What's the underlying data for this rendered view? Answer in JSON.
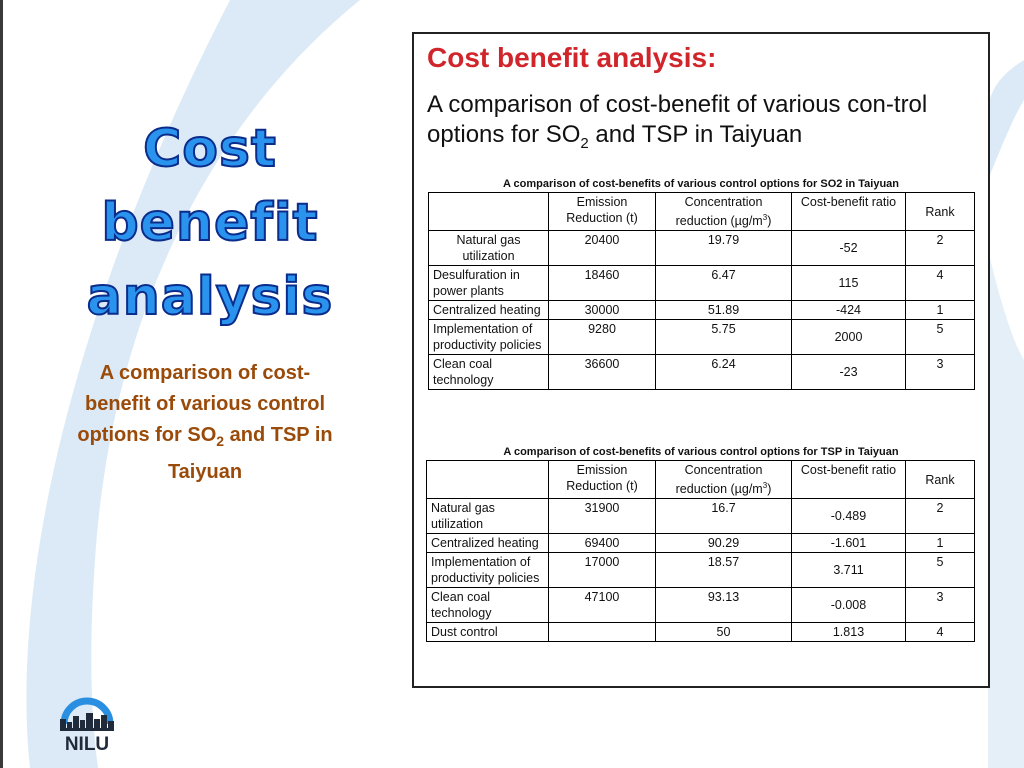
{
  "slide": {
    "title_lines": [
      "Cost",
      "benefit",
      "analysis"
    ],
    "subtitle": {
      "part1": "A comparison of cost-benefit of various control options for SO",
      "sub": "2",
      "part2": " and TSP in Taiyuan"
    },
    "logo_text": "NILU"
  },
  "figure": {
    "heading": "Cost benefit analysis:",
    "subheading": {
      "part1": "A comparison of cost-benefit of various con-trol options for SO",
      "sub": "2",
      "part2": " and TSP in Taiyuan"
    },
    "headers": {
      "emission": "Emission Reduction (t)",
      "concentration": "Concentration reduction (µg/m",
      "concentration_sup": "3",
      "concentration_end": ")",
      "cost": "Cost-benefit ratio",
      "rank": "Rank"
    },
    "table_so2": {
      "caption": "A comparison of cost-benefits of various control options for SO2 in Taiyuan",
      "rows": [
        {
          "option": "Natural gas utilization",
          "emission": "20400",
          "concentration": "19.79",
          "ratio": "-52",
          "rank": "2"
        },
        {
          "option": "Desulfuration in power plants",
          "emission": "18460",
          "concentration": "6.47",
          "ratio": "115",
          "rank": "4"
        },
        {
          "option": "Centralized heating",
          "emission": "30000",
          "concentration": "51.89",
          "ratio": "-424",
          "rank": "1"
        },
        {
          "option": "Implementation of productivity policies",
          "emission": "9280",
          "concentration": "5.75",
          "ratio": "2000",
          "rank": "5"
        },
        {
          "option": "Clean coal technology",
          "emission": "36600",
          "concentration": "6.24",
          "ratio": "-23",
          "rank": "3"
        }
      ]
    },
    "table_tsp": {
      "caption": "A comparison of cost-benefits of various control options for TSP in Taiyuan",
      "rows": [
        {
          "option": "Natural gas utilization",
          "emission": "31900",
          "concentration": "16.7",
          "ratio": "-0.489",
          "rank": "2"
        },
        {
          "option": "Centralized heating",
          "emission": "69400",
          "concentration": "90.29",
          "ratio": "-1.601",
          "rank": "1"
        },
        {
          "option": "Implementation of productivity policies",
          "emission": "17000",
          "concentration": "18.57",
          "ratio": "3.711",
          "rank": "5"
        },
        {
          "option": "Clean coal technology",
          "emission": "47100",
          "concentration": "93.13",
          "ratio": "-0.008",
          "rank": "3"
        },
        {
          "option": "Dust control",
          "emission": "",
          "concentration": "50",
          "ratio": "1.813",
          "rank": "4"
        }
      ]
    }
  }
}
